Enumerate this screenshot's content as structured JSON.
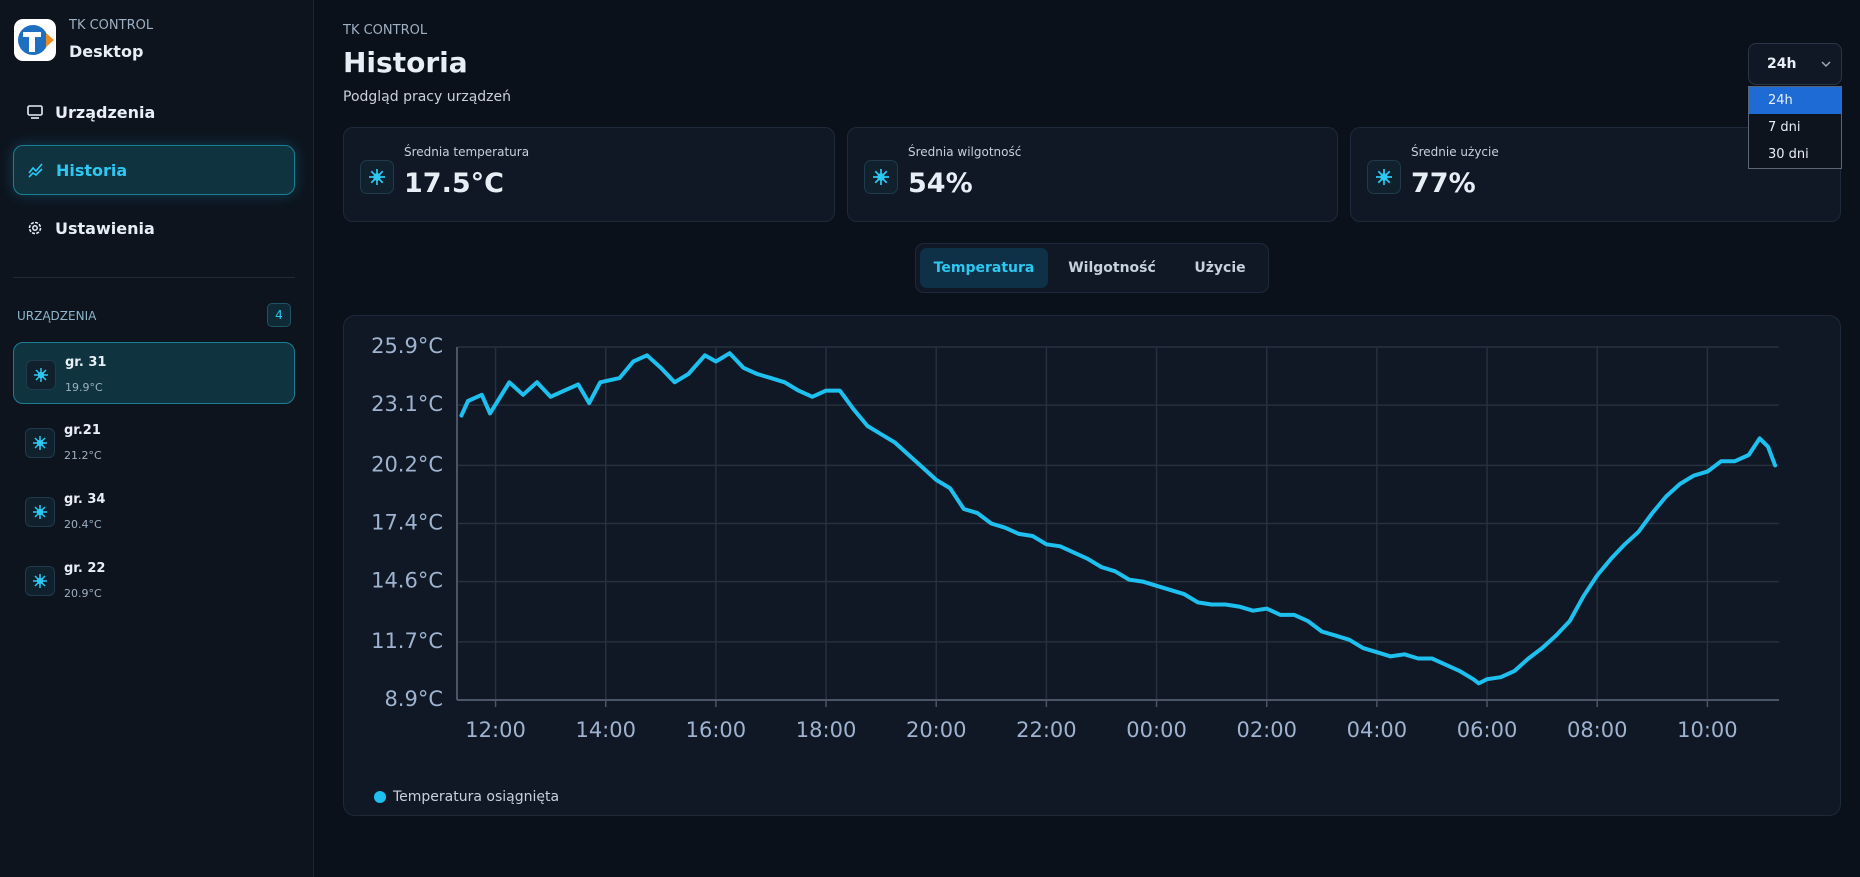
{
  "sidebar": {
    "brand": "TK CONTROL",
    "app": "Desktop",
    "nav": [
      "Urządzenia",
      "Historia",
      "Ustawienia"
    ],
    "devices_heading": "URZĄDZENIA",
    "devices_count": 4,
    "devices": [
      {
        "name": "gr. 31",
        "temp": "19.9°C"
      },
      {
        "name": "gr.21",
        "temp": "21.2°C"
      },
      {
        "name": "gr. 34",
        "temp": "20.4°C"
      },
      {
        "name": "gr. 22",
        "temp": "20.9°C"
      }
    ]
  },
  "header": {
    "eyebrow": "TK CONTROL",
    "title": "Historia",
    "subtitle": "Podgląd pracy urządzeń"
  },
  "range": {
    "selected": "24h",
    "options": [
      "24h",
      "7 dni",
      "30 dni"
    ]
  },
  "stats": [
    {
      "label": "Średnia temperatura",
      "value": "17.5°C"
    },
    {
      "label": "Średnia wilgotność",
      "value": "54%"
    },
    {
      "label": "Średnie użycie",
      "value": "77%"
    }
  ],
  "tabs": [
    "Temperatura",
    "Wilgotność",
    "Użycie"
  ],
  "chart_data": {
    "type": "line",
    "grid": true,
    "legend": "lower left",
    "x": [
      11.38,
      11.5,
      11.75,
      11.9,
      12.25,
      12.5,
      12.75,
      13.0,
      13.25,
      13.5,
      13.7,
      13.9,
      14.25,
      14.5,
      14.75,
      15.0,
      15.25,
      15.5,
      15.8,
      16.0,
      16.25,
      16.5,
      16.75,
      17.0,
      17.25,
      17.5,
      17.75,
      18.0,
      18.25,
      18.5,
      18.75,
      19.0,
      19.25,
      19.5,
      19.75,
      20.0,
      20.25,
      20.5,
      20.75,
      21.0,
      21.25,
      21.5,
      21.75,
      22.0,
      22.25,
      22.5,
      22.75,
      23.0,
      23.25,
      23.5,
      23.75,
      24.0,
      24.25,
      24.5,
      24.75,
      25.0,
      25.25,
      25.5,
      25.75,
      26.0,
      26.25,
      26.5,
      26.75,
      27.0,
      27.25,
      27.5,
      27.75,
      28.0,
      28.25,
      28.5,
      28.75,
      29.0,
      29.25,
      29.5,
      29.75,
      29.85,
      30.0,
      30.25,
      30.5,
      30.75,
      31.0,
      31.25,
      31.5,
      31.75,
      32.0,
      32.25,
      32.5,
      32.75,
      33.0,
      33.25,
      33.5,
      33.75,
      34.0,
      34.25,
      34.5,
      34.75,
      34.95,
      35.1,
      35.23
    ],
    "series": [
      {
        "name": "Temperatura osiągnięta",
        "color": "#1ec0f0",
        "values": [
          22.6,
          23.3,
          23.6,
          22.7,
          24.2,
          23.6,
          24.2,
          23.5,
          23.8,
          24.1,
          23.2,
          24.2,
          24.4,
          25.2,
          25.5,
          24.9,
          24.2,
          24.6,
          25.5,
          25.2,
          25.6,
          24.9,
          24.6,
          24.4,
          24.2,
          23.8,
          23.5,
          23.8,
          23.8,
          22.9,
          22.1,
          21.7,
          21.3,
          20.7,
          20.1,
          19.5,
          19.1,
          18.1,
          17.9,
          17.4,
          17.2,
          16.9,
          16.8,
          16.4,
          16.3,
          16.0,
          15.7,
          15.3,
          15.1,
          14.7,
          14.6,
          14.4,
          14.2,
          14.0,
          13.6,
          13.5,
          13.5,
          13.4,
          13.2,
          13.3,
          13.0,
          13.0,
          12.7,
          12.2,
          12.0,
          11.8,
          11.4,
          11.2,
          11.0,
          11.1,
          10.9,
          10.9,
          10.6,
          10.3,
          9.9,
          9.7,
          9.9,
          10.0,
          10.3,
          10.9,
          11.4,
          12.0,
          12.7,
          13.9,
          14.9,
          15.7,
          16.4,
          17.0,
          17.9,
          18.7,
          19.3,
          19.7,
          19.9,
          20.4,
          20.4,
          20.7,
          21.5,
          21.1,
          20.2
        ]
      }
    ],
    "xlim": [
      11.3,
      35.3
    ],
    "xticks": [
      {
        "value": 12,
        "label": "12:00"
      },
      {
        "value": 14,
        "label": "14:00"
      },
      {
        "value": 16,
        "label": "16:00"
      },
      {
        "value": 18,
        "label": "18:00"
      },
      {
        "value": 20,
        "label": "20:00"
      },
      {
        "value": 22,
        "label": "22:00"
      },
      {
        "value": 24,
        "label": "00:00"
      },
      {
        "value": 26,
        "label": "02:00"
      },
      {
        "value": 28,
        "label": "04:00"
      },
      {
        "value": 30,
        "label": "06:00"
      },
      {
        "value": 32,
        "label": "08:00"
      },
      {
        "value": 34,
        "label": "10:00"
      }
    ],
    "ylim": [
      8.9,
      25.9
    ],
    "yticks": [
      {
        "value": 8.9,
        "label": "8.9°C"
      },
      {
        "value": 11.7,
        "label": "11.7°C"
      },
      {
        "value": 14.6,
        "label": "14.6°C"
      },
      {
        "value": 17.4,
        "label": "17.4°C"
      },
      {
        "value": 20.2,
        "label": "20.2°C"
      },
      {
        "value": 23.1,
        "label": "23.1°C"
      },
      {
        "value": 25.9,
        "label": "25.9°C"
      }
    ]
  }
}
